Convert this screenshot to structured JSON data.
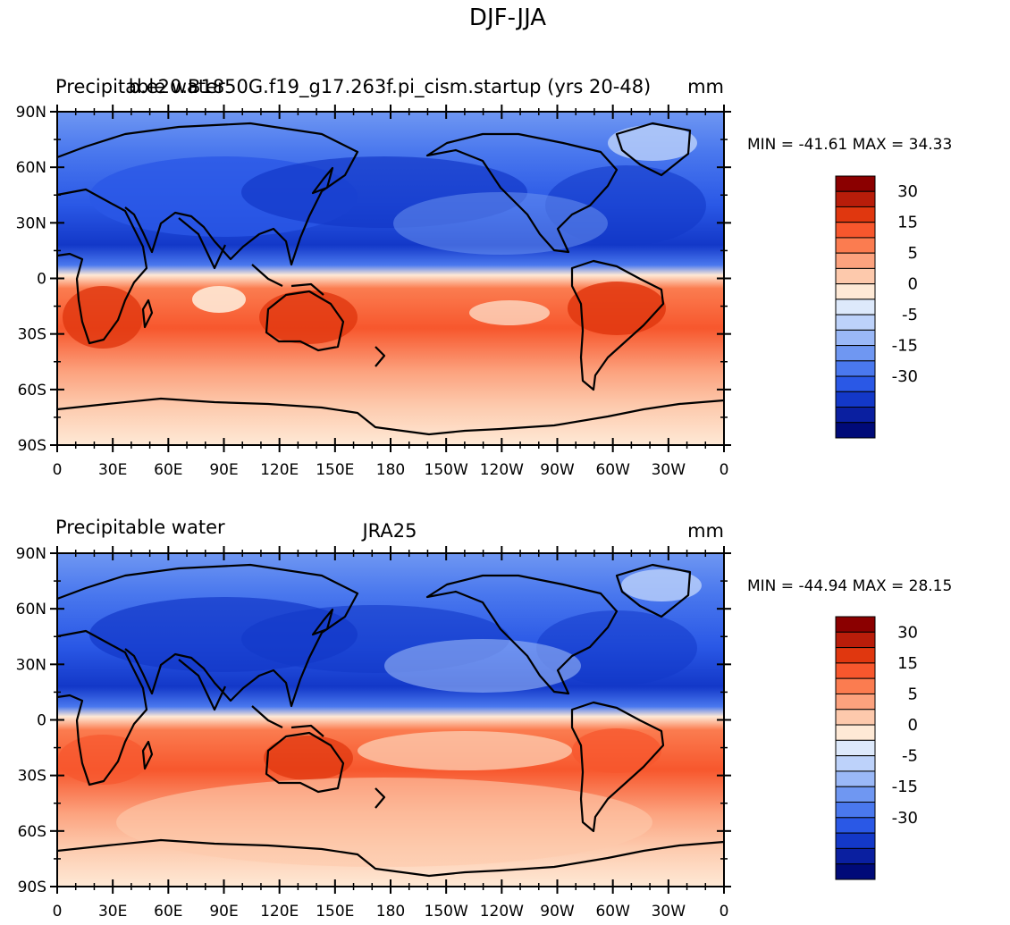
{
  "figure_title": "DJF-JJA",
  "chart_data": [
    {
      "type": "heatmap",
      "variable": "Precipitable water",
      "title": "b.e20.B1850G.f19_g17.263f.pi_cism.startup (yrs 20-48)",
      "units": "mm",
      "stats": "MIN = -41.61 MAX =  34.33",
      "lat_ticks": [
        "90N",
        "60N",
        "30N",
        "0",
        "30S",
        "60S",
        "90S"
      ],
      "lon_ticks": [
        "0",
        "30E",
        "60E",
        "90E",
        "120E",
        "150E",
        "180",
        "150W",
        "120W",
        "90W",
        "60W",
        "30W",
        "0"
      ],
      "lat_range": [
        -90,
        90
      ],
      "lon_range": [
        0,
        360
      ]
    },
    {
      "type": "heatmap",
      "variable": "Precipitable water",
      "title": "JRA25",
      "units": "mm",
      "stats": "MIN = -44.94 MAX =  28.15",
      "lat_ticks": [
        "90N",
        "60N",
        "30N",
        "0",
        "30S",
        "60S",
        "90S"
      ],
      "lon_ticks": [
        "0",
        "30E",
        "60E",
        "90E",
        "120E",
        "150E",
        "180",
        "150W",
        "120W",
        "90W",
        "60W",
        "30W",
        "0"
      ],
      "lat_range": [
        -90,
        90
      ],
      "lon_range": [
        0,
        360
      ]
    }
  ],
  "colorbar": {
    "colors": [
      "#8b0000",
      "#b81d0a",
      "#e0370f",
      "#f7572d",
      "#fb7c50",
      "#fca27e",
      "#fdc9ac",
      "#fee9d6",
      "#dde9fb",
      "#bdd2fa",
      "#9ab8f7",
      "#6f97f2",
      "#4a78ee",
      "#2a58e6",
      "#1338c8",
      "#0a1fa0",
      "#000a78"
    ],
    "labels": [
      "30",
      "15",
      "5",
      "0",
      "-5",
      "-15",
      "-30"
    ],
    "label_rows": [
      1,
      3,
      5,
      7,
      9,
      11,
      13
    ]
  }
}
